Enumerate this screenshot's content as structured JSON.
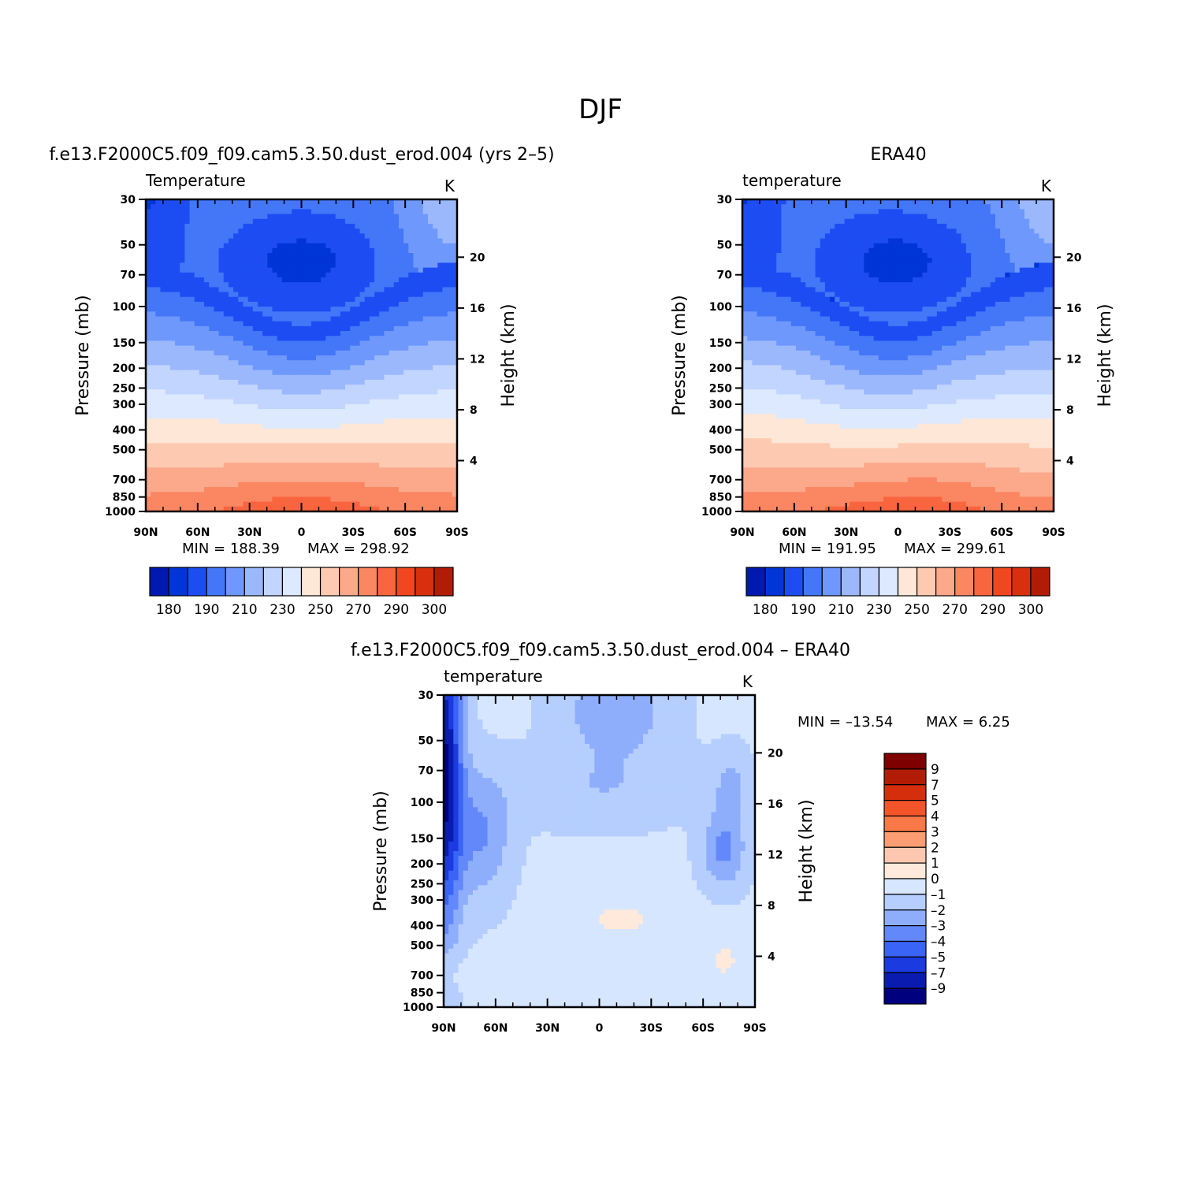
{
  "figure": {
    "title": "DJF",
    "model_name": "f.e13.F2000C5.f09_f09.cam5.3.50.dust_erod.004 (yrs 2–5)",
    "obs_name": "ERA40",
    "diff_title": "f.e13.F2000C5.f09_f09.cam5.3.50.dust_erod.004 – ERA40"
  },
  "chart_data": [
    {
      "id": "model",
      "type": "heatmap",
      "title": "f.e13.F2000C5.f09_f09.cam5.3.50.dust_erod.004 (yrs 2–5)",
      "variable_label": "Temperature",
      "units": "K",
      "x_tick_labels": [
        "90N",
        "60N",
        "30N",
        "0",
        "30S",
        "60S",
        "90S"
      ],
      "x_ticks_deg": [
        90,
        60,
        30,
        0,
        -30,
        -60,
        -90
      ],
      "y_ticks_mb": [
        30,
        50,
        70,
        100,
        150,
        200,
        250,
        300,
        400,
        500,
        700,
        850,
        1000
      ],
      "y_tick_labels": [
        "30",
        "50",
        "70",
        "100",
        "150",
        "200",
        "250",
        "300",
        "400",
        "500",
        "700",
        "850",
        "1000"
      ],
      "ylabel": "Pressure (mb)",
      "ylim_mb": [
        30,
        1000
      ],
      "ylog": true,
      "right_axis_label": "Height (km)",
      "height_ticks_km": [
        4,
        8,
        12,
        16,
        20
      ],
      "min_text": "MIN = 188.39",
      "max_text": "MAX = 298.92",
      "min": 188.39,
      "max": 298.92
    },
    {
      "id": "obs",
      "type": "heatmap",
      "title": "ERA40",
      "variable_label": "temperature",
      "units": "K",
      "x_tick_labels": [
        "90N",
        "60N",
        "30N",
        "0",
        "30S",
        "60S",
        "90S"
      ],
      "x_ticks_deg": [
        90,
        60,
        30,
        0,
        -30,
        -60,
        -90
      ],
      "y_ticks_mb": [
        30,
        50,
        70,
        100,
        150,
        200,
        250,
        300,
        400,
        500,
        700,
        850,
        1000
      ],
      "y_tick_labels": [
        "30",
        "50",
        "70",
        "100",
        "150",
        "200",
        "250",
        "300",
        "400",
        "500",
        "700",
        "850",
        "1000"
      ],
      "ylabel": "Pressure (mb)",
      "ylim_mb": [
        30,
        1000
      ],
      "ylog": true,
      "right_axis_label": "Height (km)",
      "height_ticks_km": [
        4,
        8,
        12,
        16,
        20
      ],
      "min_text": "MIN = 191.95",
      "max_text": "MAX = 299.61",
      "min": 191.95,
      "max": 299.61
    },
    {
      "id": "diff",
      "type": "heatmap",
      "title": "f.e13.F2000C5.f09_f09.cam5.3.50.dust_erod.004 – ERA40",
      "variable_label": "temperature",
      "units": "K",
      "x_tick_labels": [
        "90N",
        "60N",
        "30N",
        "0",
        "30S",
        "60S",
        "90S"
      ],
      "x_ticks_deg": [
        90,
        60,
        30,
        0,
        -30,
        -60,
        -90
      ],
      "y_ticks_mb": [
        30,
        50,
        70,
        100,
        150,
        200,
        250,
        300,
        400,
        500,
        700,
        850,
        1000
      ],
      "y_tick_labels": [
        "30",
        "50",
        "70",
        "100",
        "150",
        "200",
        "250",
        "300",
        "400",
        "500",
        "700",
        "850",
        "1000"
      ],
      "ylabel": "Pressure (mb)",
      "ylim_mb": [
        30,
        1000
      ],
      "ylog": true,
      "right_axis_label": "Height (km)",
      "height_ticks_km": [
        4,
        8,
        12,
        16,
        20
      ],
      "min_text": "MIN = –13.54",
      "max_text": "MAX =     6.25",
      "min": -13.54,
      "max": 6.25
    }
  ],
  "colorbars": {
    "abs": {
      "orientation": "horizontal",
      "colors": [
        "#00007f",
        "#0019b0",
        "#0035d8",
        "#1d4df2",
        "#4476f8",
        "#6e98fb",
        "#9bb8fd",
        "#c2d5fe",
        "#dde9fe",
        "#fee7d6",
        "#fdcab1",
        "#fca88a",
        "#fb8662",
        "#f8653e",
        "#ef4820",
        "#d8300d",
        "#b21c06",
        "#7f0000"
      ],
      "levels_all": [
        180,
        190,
        200,
        210,
        220,
        230,
        240,
        250,
        260,
        270,
        280,
        290,
        300
      ],
      "labels": [
        "180",
        "190",
        "210",
        "230",
        "250",
        "270",
        "290",
        "300"
      ]
    },
    "diff": {
      "orientation": "vertical",
      "colors": [
        "#00007f",
        "#0a1cb0",
        "#1b3ae0",
        "#3a64f6",
        "#6288fa",
        "#8eaefc",
        "#b5cefe",
        "#d6e6fe",
        "#fee9da",
        "#fdc8af",
        "#fb9c72",
        "#f97848",
        "#f4542a",
        "#d42e0c",
        "#b21c06",
        "#7f0000"
      ],
      "labels": [
        "9",
        "7",
        "5",
        "4",
        "3",
        "2",
        "1",
        "0",
        "–1",
        "–2",
        "–3",
        "–4",
        "–5",
        "–7",
        "–9"
      ]
    }
  }
}
